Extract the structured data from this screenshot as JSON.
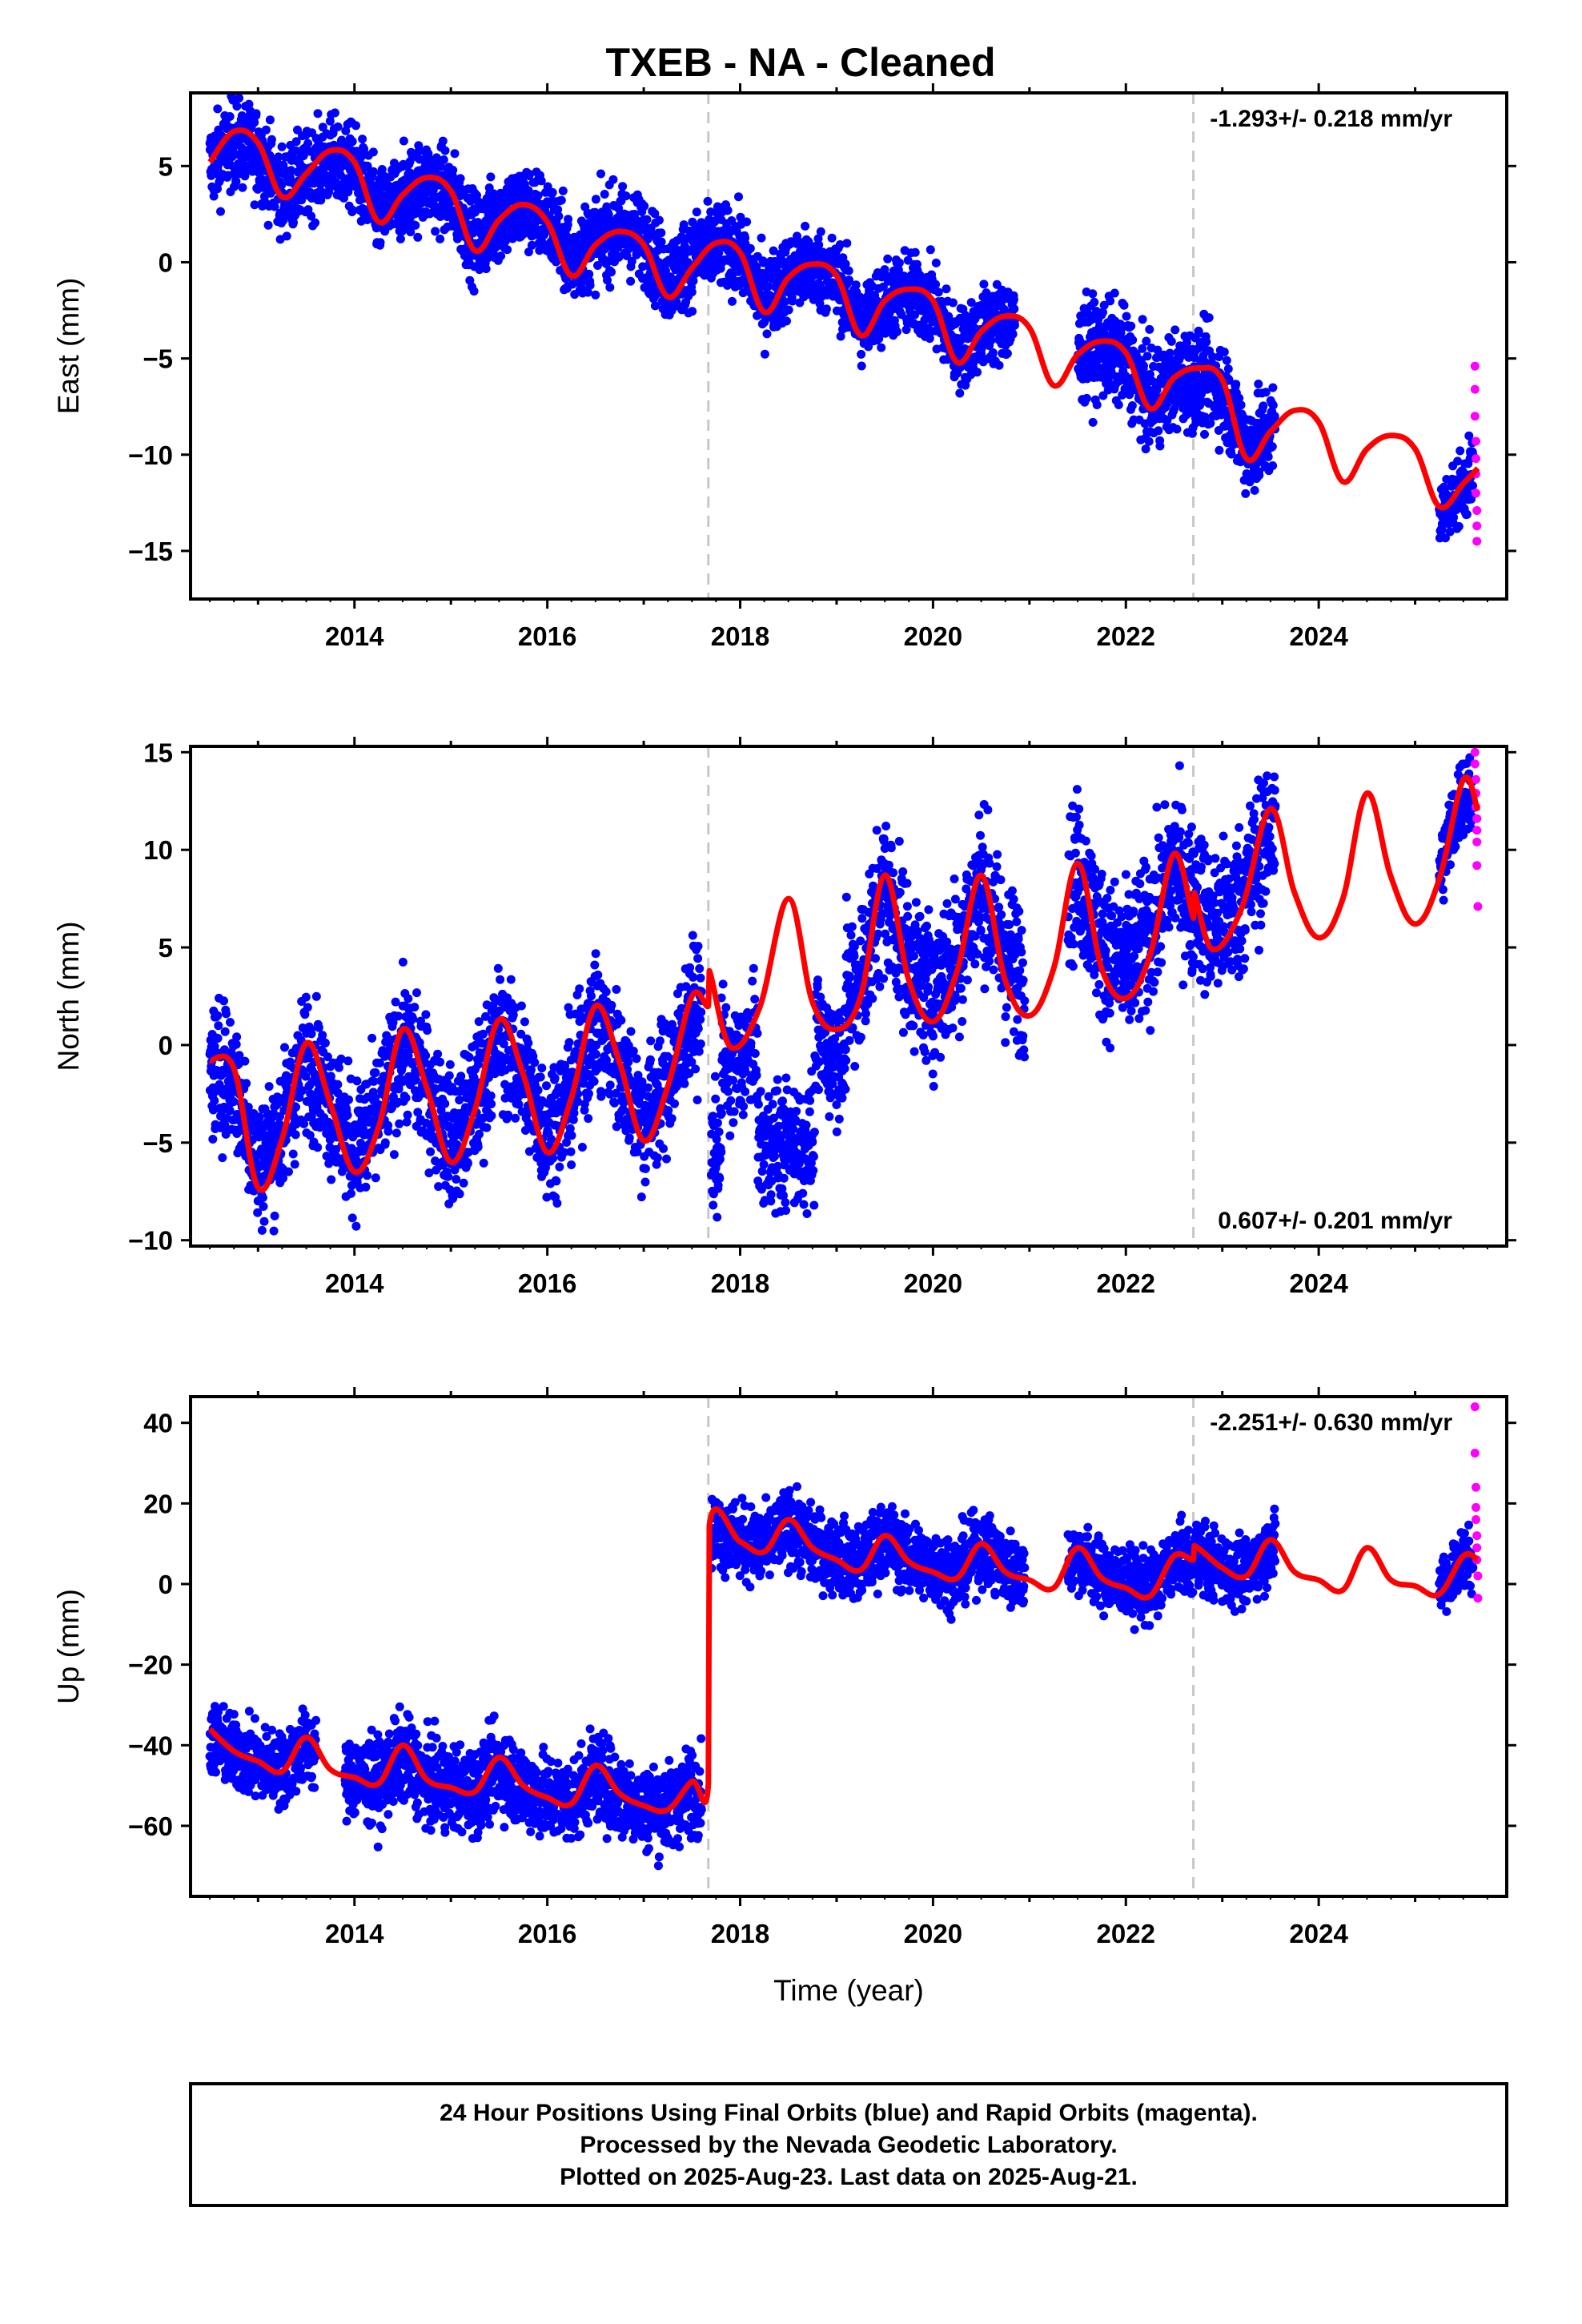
{
  "title": "TXEB  - NA - Cleaned",
  "colors": {
    "final_orbits": "#0000ff",
    "rapid_orbits": "#ff00ff",
    "model": "#ff0000",
    "vline": "#c8c8c8"
  },
  "chart_data": [
    {
      "type": "scatter",
      "ylabel": "East (mm)",
      "xlabel": "",
      "xlim": [
        2012.3,
        2025.95
      ],
      "ylim": [
        -17.5,
        8.8
      ],
      "xticks": [
        2014,
        2016,
        2018,
        2020,
        2022,
        2024
      ],
      "yticks": [
        5,
        0,
        -5,
        -10,
        -15
      ],
      "rate": "-1.293+/- 0.218 mm/yr",
      "rate_position": "top-right",
      "vlines": [
        2017.67,
        2022.7
      ],
      "model": {
        "x": [
          2012.5,
          2012.75,
          2013.0,
          2013.25,
          2013.5,
          2013.75,
          2014.0,
          2014.25,
          2014.5,
          2014.75,
          2015.0,
          2015.25,
          2015.5,
          2015.75,
          2016.0,
          2016.25,
          2016.5,
          2016.75,
          2017.0,
          2017.25,
          2017.5,
          2017.75,
          2018.0,
          2018.25,
          2018.5,
          2018.75,
          2019.0,
          2019.25,
          2019.5,
          2019.75,
          2020.0,
          2020.25,
          2020.5,
          2020.75,
          2021.0,
          2021.25,
          2021.5,
          2021.75,
          2022.0,
          2022.25,
          2022.5,
          2022.75,
          2023.0,
          2023.25,
          2023.5,
          2023.75,
          2024.0,
          2024.25,
          2024.5,
          2024.75,
          2025.0,
          2025.25,
          2025.5,
          2025.65
        ],
        "y": [
          5.2,
          6.8,
          6.2,
          3.4,
          4.6,
          5.8,
          5.2,
          2.1,
          3.5,
          4.4,
          3.7,
          0.6,
          2.2,
          3.0,
          2.1,
          -0.7,
          0.9,
          1.6,
          0.9,
          -1.8,
          -0.3,
          1.0,
          0.5,
          -2.6,
          -0.8,
          -0.1,
          -0.7,
          -3.8,
          -2.0,
          -1.4,
          -2.0,
          -5.2,
          -3.6,
          -2.8,
          -3.4,
          -6.4,
          -4.8,
          -4.1,
          -4.7,
          -7.6,
          -6.0,
          -5.5,
          -6.1,
          -10.2,
          -8.8,
          -7.7,
          -8.3,
          -11.4,
          -9.7,
          -9.0,
          -9.7,
          -12.7,
          -11.5,
          -10.7
        ]
      },
      "final_orbits": {
        "segments": [
          {
            "x": [
              2012.5,
              2017.6
            ],
            "trend_y": [
              4.6,
              1.6
            ],
            "spread": 1.6
          },
          {
            "x": [
              2017.6,
              2020.85
            ],
            "trend_y": [
              0.8,
              -3.8
            ],
            "spread": 1.5
          },
          {
            "x": [
              2021.5,
              2023.55
            ],
            "trend_y": [
              -4.8,
              -8.8
            ],
            "spread": 1.8
          },
          {
            "x": [
              2025.25,
              2025.6
            ],
            "trend_y": [
              -14.5,
              -11.0
            ],
            "spread": 1.3
          }
        ]
      },
      "rapid_orbits": {
        "x": [
          2025.62,
          2025.62,
          2025.62,
          2025.63,
          2025.63,
          2025.63,
          2025.63,
          2025.64,
          2025.64,
          2025.64
        ],
        "y": [
          -5.4,
          -6.6,
          -8.0,
          -9.3,
          -10.2,
          -11.0,
          -12.0,
          -12.9,
          -13.7,
          -14.5
        ]
      }
    },
    {
      "type": "scatter",
      "ylabel": "North (mm)",
      "xlabel": "",
      "xlim": [
        2012.3,
        2025.95
      ],
      "ylim": [
        -10.3,
        15.3
      ],
      "xticks": [
        2014,
        2016,
        2018,
        2020,
        2022,
        2024
      ],
      "yticks": [
        15,
        10,
        5,
        0,
        -5,
        -10
      ],
      "rate": "0.607+/- 0.201 mm/yr",
      "rate_position": "bottom-right",
      "vlines": [
        2017.67,
        2022.7
      ],
      "model": {
        "x": [
          2012.5,
          2012.75,
          2013.0,
          2013.25,
          2013.5,
          2013.75,
          2014.0,
          2014.25,
          2014.5,
          2014.75,
          2015.0,
          2015.25,
          2015.5,
          2015.75,
          2016.0,
          2016.25,
          2016.5,
          2016.75,
          2017.0,
          2017.25,
          2017.5,
          2017.67,
          2017.68,
          2017.9,
          2018.2,
          2018.5,
          2018.75,
          2019.0,
          2019.25,
          2019.5,
          2019.75,
          2020.0,
          2020.25,
          2020.5,
          2020.75,
          2021.0,
          2021.25,
          2021.5,
          2021.75,
          2022.0,
          2022.25,
          2022.5,
          2022.7,
          2022.71,
          2022.9,
          2023.2,
          2023.5,
          2023.75,
          2024.0,
          2024.25,
          2024.5,
          2024.75,
          2025.0,
          2025.25,
          2025.5,
          2025.65
        ],
        "y": [
          -0.8,
          -1.2,
          -7.3,
          -4.8,
          0.1,
          -3.0,
          -6.5,
          -4.2,
          0.8,
          -2.2,
          -6.0,
          -3.3,
          1.3,
          -1.5,
          -5.5,
          -2.7,
          2.0,
          -0.9,
          -4.9,
          -2.1,
          2.5,
          2.0,
          3.8,
          -0.1,
          1.9,
          7.5,
          2.2,
          0.8,
          2.5,
          8.7,
          3.3,
          1.2,
          3.8,
          8.7,
          3.3,
          1.5,
          3.9,
          9.3,
          3.9,
          2.4,
          4.6,
          9.8,
          6.5,
          7.8,
          4.9,
          7.0,
          12.1,
          7.8,
          5.5,
          7.5,
          12.9,
          8.6,
          6.2,
          8.5,
          13.6,
          12.0
        ]
      },
      "final_orbits": {
        "segments": [
          {
            "x": [
              2012.5,
              2017.6
            ],
            "trend_y": [
              -3.0,
              -0.8
            ],
            "spread": 2.4
          },
          {
            "x": [
              2017.7,
              2019.1
            ],
            "trend_y": [
              -5.5,
              -4.8
            ],
            "spread": 2.2
          },
          {
            "x": [
              2019.1,
              2020.95
            ],
            "trend_y": [
              6.2,
              8.0
            ],
            "spread": 2.8
          },
          {
            "x": [
              2021.4,
              2023.55
            ],
            "trend_y": [
              8.4,
              8.8
            ],
            "spread": 2.8
          },
          {
            "x": [
              2025.25,
              2025.6
            ],
            "trend_y": [
              10.0,
              12.0
            ],
            "spread": 1.5
          }
        ]
      },
      "rapid_orbits": {
        "x": [
          2025.62,
          2025.62,
          2025.63,
          2025.63,
          2025.63,
          2025.64,
          2025.64,
          2025.64,
          2025.64,
          2025.65
        ],
        "y": [
          15.0,
          14.4,
          13.6,
          12.9,
          12.2,
          11.6,
          11.0,
          10.4,
          9.2,
          7.1
        ]
      }
    },
    {
      "type": "scatter",
      "ylabel": "Up (mm)",
      "xlabel": "Time (year)",
      "xlim": [
        2012.3,
        2025.95
      ],
      "ylim": [
        -77.5,
        46.5
      ],
      "xticks": [
        2014,
        2016,
        2018,
        2020,
        2022,
        2024
      ],
      "yticks": [
        40,
        20,
        0,
        -20,
        -40,
        -60
      ],
      "rate": "-2.251+/- 0.630 mm/yr",
      "rate_position": "top-right",
      "vlines": [
        2017.67,
        2022.7
      ],
      "model": {
        "x": [
          2012.5,
          2012.75,
          2013.0,
          2013.25,
          2013.5,
          2013.75,
          2014.0,
          2014.25,
          2014.5,
          2014.75,
          2015.0,
          2015.25,
          2015.5,
          2015.75,
          2016.0,
          2016.25,
          2016.5,
          2016.75,
          2017.0,
          2017.25,
          2017.5,
          2017.67,
          2017.68,
          2018.0,
          2018.25,
          2018.5,
          2018.75,
          2019.0,
          2019.25,
          2019.5,
          2019.75,
          2020.0,
          2020.25,
          2020.5,
          2020.75,
          2021.0,
          2021.25,
          2021.5,
          2021.75,
          2022.0,
          2022.25,
          2022.5,
          2022.7,
          2022.71,
          2023.0,
          2023.25,
          2023.5,
          2023.75,
          2024.0,
          2024.25,
          2024.5,
          2024.75,
          2025.0,
          2025.25,
          2025.5,
          2025.65
        ],
        "y": [
          -36.0,
          -41.5,
          -44.0,
          -46.5,
          -38.0,
          -46.0,
          -48.0,
          -49.5,
          -40.0,
          -48.5,
          -50.5,
          -51.5,
          -43.0,
          -50.0,
          -53.0,
          -54.5,
          -45.0,
          -52.0,
          -55.0,
          -56.0,
          -49.0,
          -49.5,
          14.5,
          10.5,
          8.0,
          16.0,
          9.0,
          6.0,
          3.5,
          12.0,
          5.5,
          3.0,
          1.5,
          10.0,
          3.0,
          1.0,
          -1.0,
          9.0,
          1.5,
          -1.0,
          -3.0,
          7.0,
          6.0,
          9.5,
          4.0,
          2.0,
          11.0,
          3.0,
          1.0,
          -1.5,
          9.0,
          1.0,
          -0.5,
          -2.5,
          7.0,
          6.0
        ]
      },
      "final_orbits": {
        "segments": [
          {
            "x": [
              2012.5,
              2013.6
            ],
            "trend_y": [
              -43.0,
              -47.0
            ],
            "spread": 6.5
          },
          {
            "x": [
              2013.9,
              2017.6
            ],
            "trend_y": [
              -49.0,
              -56.0
            ],
            "spread": 7.5
          },
          {
            "x": [
              2017.7,
              2020.95
            ],
            "trend_y": [
              12.0,
              6.5
            ],
            "spread": 6.5
          },
          {
            "x": [
              2021.4,
              2023.55
            ],
            "trend_y": [
              3.5,
              3.5
            ],
            "spread": 6.0
          },
          {
            "x": [
              2025.25,
              2025.6
            ],
            "trend_y": [
              5.0,
              4.0
            ],
            "spread": 5.5
          }
        ]
      },
      "rapid_orbits": {
        "x": [
          2025.62,
          2025.62,
          2025.63,
          2025.63,
          2025.63,
          2025.64,
          2025.64,
          2025.64,
          2025.65,
          2025.65
        ],
        "y": [
          44.0,
          32.5,
          24.0,
          19.0,
          16.0,
          12.0,
          9.0,
          6.0,
          2.0,
          -3.5
        ]
      }
    }
  ],
  "footer": {
    "line1": "24 Hour Positions Using Final Orbits (blue) and Rapid Orbits (magenta).",
    "line2": "Processed by the Nevada Geodetic Laboratory.",
    "line3": "Plotted on 2025-Aug-23. Last data on 2025-Aug-21."
  }
}
